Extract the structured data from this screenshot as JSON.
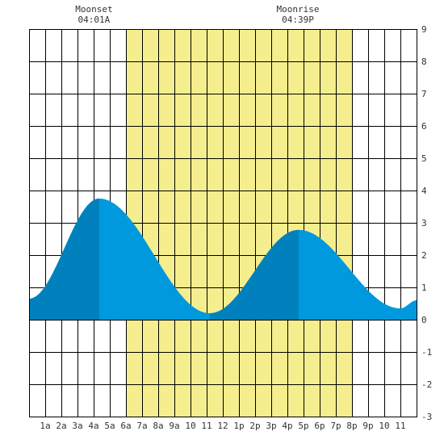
{
  "chart_data": {
    "type": "area",
    "title": "",
    "xlabel": "",
    "ylabel": "",
    "xlim": [
      0,
      24
    ],
    "ylim": [
      -3,
      9
    ],
    "grid": true,
    "x_tick_labels": [
      "1a",
      "2a",
      "3a",
      "4a",
      "5a",
      "6a",
      "7a",
      "8a",
      "9a",
      "10",
      "11",
      "12",
      "1p",
      "2p",
      "3p",
      "4p",
      "5p",
      "6p",
      "7p",
      "8p",
      "9p",
      "10",
      "11"
    ],
    "y_tick_labels": [
      "-3",
      "-2",
      "-1",
      "0",
      "1",
      "2",
      "3",
      "4",
      "5",
      "6",
      "7",
      "8",
      "9"
    ],
    "daylight": {
      "start": 6.0,
      "end": 20.0,
      "color": "#f5ee8e"
    },
    "moon_events": [
      {
        "label": "Moonset",
        "time": "04:01A",
        "hour": 4.02
      },
      {
        "label": "Moonrise",
        "time": "04:39P",
        "hour": 16.65
      }
    ],
    "tide_extrema": [
      {
        "hour": 0.0,
        "height": 0.65
      },
      {
        "hour": 4.35,
        "height": 3.75
      },
      {
        "hour": 11.2,
        "height": 0.2
      },
      {
        "hour": 16.7,
        "height": 2.78
      },
      {
        "hour": 23.0,
        "height": 0.35
      },
      {
        "hour": 24.0,
        "height": 0.6
      }
    ],
    "series": [
      {
        "name": "",
        "color": "#0099dd",
        "dark_color": "#0081bd"
      }
    ],
    "dark_segments": [
      [
        0.0,
        4.35
      ],
      [
        11.2,
        16.7
      ]
    ]
  }
}
